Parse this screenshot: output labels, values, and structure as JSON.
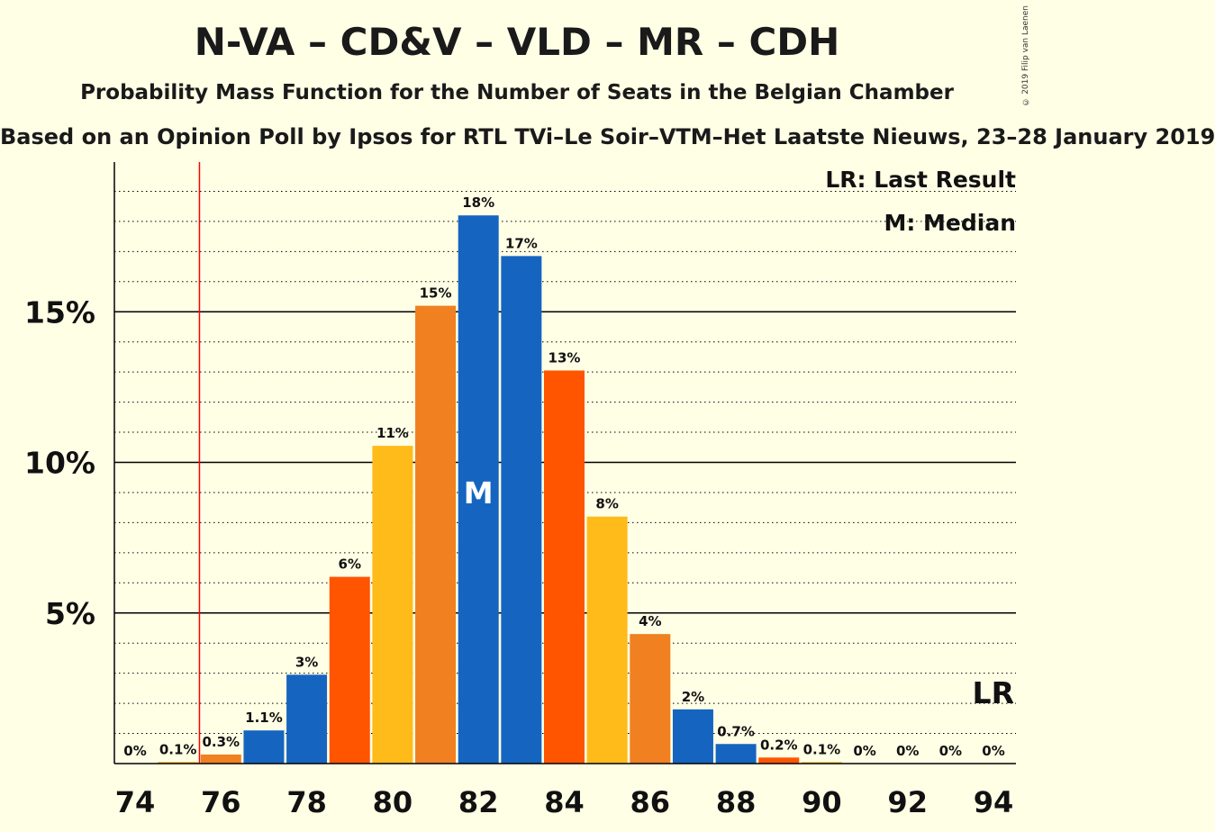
{
  "title": "N-VA – CD&V – VLD – MR – CDH",
  "subtitle": "Probability Mass Function for the Number of Seats in the Belgian Chamber",
  "source_line": "Based on an Opinion Poll by Ipsos for RTL TVi–Le Soir–VTM–Het Laatste Nieuws, 23–28 January 2019",
  "copyright": "© 2019 Filip van Laenen",
  "legend": {
    "last_result": "LR: Last Result",
    "median": "M: Median"
  },
  "chart_data": {
    "type": "bar",
    "title": "N-VA – CD&V – VLD – MR – CDH",
    "xlabel": "",
    "ylabel": "",
    "ylim": [
      0,
      20
    ],
    "grid": true,
    "x": [
      74,
      75,
      76,
      77,
      78,
      79,
      80,
      81,
      82,
      83,
      84,
      85,
      86,
      87,
      88,
      89,
      90,
      91,
      92,
      93,
      94
    ],
    "values": [
      0,
      0.05,
      0.3,
      1.1,
      2.95,
      6.2,
      10.55,
      15.2,
      18.2,
      16.85,
      13.05,
      8.2,
      4.3,
      1.8,
      0.65,
      0.2,
      0.05,
      0,
      0,
      0,
      0
    ],
    "labels": [
      "0%",
      "0.1%",
      "0.3%",
      "1.1%",
      "3%",
      "6%",
      "11%",
      "15%",
      "18%",
      "17%",
      "13%",
      "8%",
      "4%",
      "2%",
      "0.7%",
      "0.2%",
      "0.1%",
      "0%",
      "0%",
      "0%",
      "0%"
    ],
    "x_tick_labels": [
      "74",
      "76",
      "78",
      "80",
      "82",
      "84",
      "86",
      "88",
      "90",
      "92",
      "94"
    ],
    "y_ticks": [
      5,
      10,
      15
    ],
    "y_tick_labels": [
      "5%",
      "10%",
      "15%"
    ],
    "last_result": 75.5,
    "last_result_label": "LR",
    "median": 82,
    "median_label": "M",
    "bar_colors": [
      "#1F5FBF",
      "#FFA500",
      "#F08020",
      "#1565C0",
      "#1565C0",
      "#FF5500",
      "#FFBB1A",
      "#F08020",
      "#1565C0",
      "#1565C0",
      "#FF5500",
      "#FFBB1A",
      "#F08020",
      "#1565C0",
      "#1565C0",
      "#FF5500",
      "#FFBB1A",
      "#F08020",
      "#1565C0",
      "#1565C0",
      "#FF5500"
    ],
    "last_result_color": "#FF0000"
  }
}
